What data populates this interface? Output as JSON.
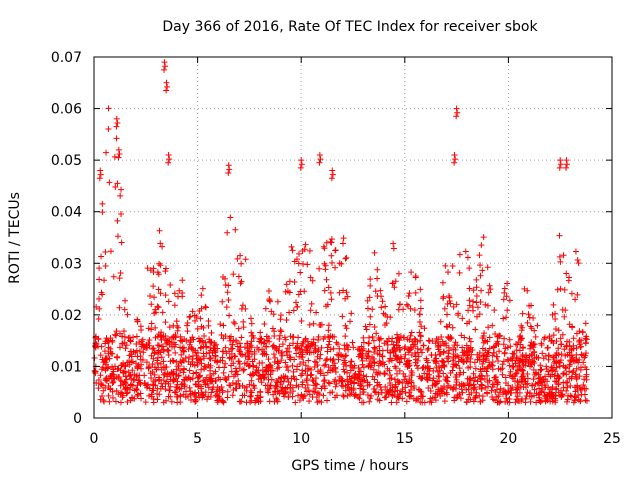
{
  "chart_data": {
    "type": "scatter",
    "title": "Day 366 of 2016, Rate Of TEC Index for receiver sbok",
    "xlabel": "GPS time / hours",
    "ylabel": "ROTI / TECUs",
    "xlim": [
      0,
      25
    ],
    "ylim": [
      0,
      0.07
    ],
    "grid": true,
    "marker": "+",
    "marker_color": "#ff0000",
    "x_ticks": [
      0,
      5,
      10,
      15,
      20,
      25
    ],
    "x_tick_labels": [
      "0",
      "5",
      "10",
      "15",
      "20",
      "25"
    ],
    "y_ticks": [
      0,
      0.01,
      0.02,
      0.03,
      0.04,
      0.05,
      0.06,
      0.07
    ],
    "y_tick_labels": [
      "0",
      "0.01",
      "0.02",
      "0.03",
      "0.04",
      "0.05",
      "0.06",
      "0.07"
    ],
    "series": [
      {
        "name": "ROTI (sbok)",
        "description": "dense cloud of samples, baseline ~0.005-0.015 TECU with bursts",
        "data_range_hours": [
          0,
          23.8
        ],
        "peaks": [
          {
            "x": 0.3,
            "y": 0.048
          },
          {
            "x": 1.1,
            "y": 0.058
          },
          {
            "x": 1.2,
            "y": 0.052
          },
          {
            "x": 3.4,
            "y": 0.069
          },
          {
            "x": 3.5,
            "y": 0.065
          },
          {
            "x": 3.6,
            "y": 0.051
          },
          {
            "x": 6.5,
            "y": 0.049
          },
          {
            "x": 10.0,
            "y": 0.05
          },
          {
            "x": 10.9,
            "y": 0.051
          },
          {
            "x": 11.5,
            "y": 0.048
          },
          {
            "x": 17.5,
            "y": 0.06
          },
          {
            "x": 17.4,
            "y": 0.051
          },
          {
            "x": 22.5,
            "y": 0.05
          },
          {
            "x": 22.8,
            "y": 0.05
          }
        ]
      }
    ]
  }
}
